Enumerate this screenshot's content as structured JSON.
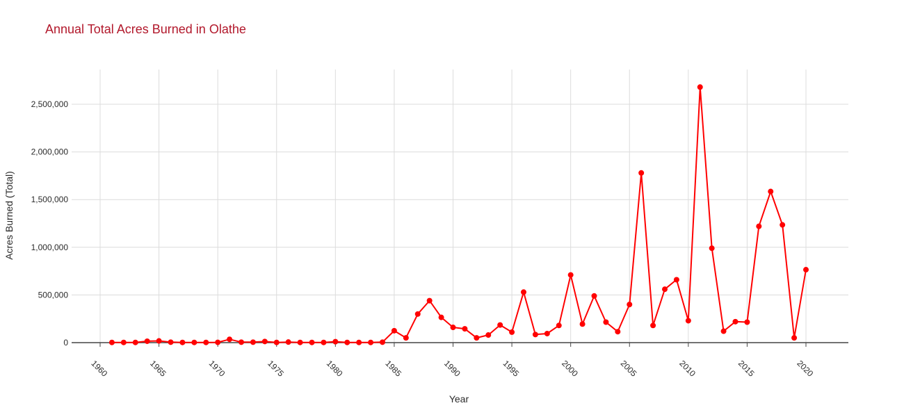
{
  "chart_data": {
    "type": "line",
    "title": "Annual Total Acres Burned in Olathe",
    "xlabel": "Year",
    "ylabel": "Acres Burned (Total)",
    "xlim": [
      1960,
      2020
    ],
    "ylim": [
      0,
      2500000
    ],
    "x_ticks": [
      "1960",
      "1965",
      "1970",
      "1975",
      "1980",
      "1985",
      "1990",
      "1995",
      "2000",
      "2005",
      "2010",
      "2015",
      "2020"
    ],
    "y_ticks": [
      "0",
      "500,000",
      "1,000,000",
      "1,500,000",
      "2,000,000",
      "2,500,000"
    ],
    "grid": true,
    "series": [
      {
        "color": "#ff0000",
        "x": [
          1961,
          1962,
          1963,
          1964,
          1965,
          1966,
          1967,
          1968,
          1969,
          1970,
          1971,
          1972,
          1973,
          1974,
          1975,
          1976,
          1977,
          1978,
          1979,
          1980,
          1981,
          1982,
          1983,
          1984,
          1985,
          1986,
          1987,
          1988,
          1989,
          1990,
          1991,
          1992,
          1993,
          1994,
          1995,
          1996,
          1997,
          1998,
          1999,
          2000,
          2001,
          2002,
          2003,
          2004,
          2005,
          2006,
          2007,
          2008,
          2009,
          2010,
          2011,
          2012,
          2013,
          2014,
          2015,
          2016,
          2017,
          2018,
          2019,
          2020
        ],
        "y": [
          2000,
          2000,
          2000,
          15000,
          18000,
          5000,
          2000,
          2000,
          2000,
          3000,
          35000,
          5000,
          5000,
          12000,
          2000,
          6000,
          2000,
          2000,
          2000,
          10000,
          2000,
          2000,
          2000,
          5000,
          125000,
          50000,
          300000,
          440000,
          265000,
          160000,
          145000,
          50000,
          80000,
          185000,
          110000,
          530000,
          85000,
          95000,
          180000,
          710000,
          195000,
          490000,
          215000,
          115000,
          400000,
          1780000,
          180000,
          560000,
          660000,
          230000,
          2680000,
          990000,
          120000,
          220000,
          215000,
          1220000,
          1585000,
          1235000,
          50000,
          765000
        ]
      }
    ]
  }
}
